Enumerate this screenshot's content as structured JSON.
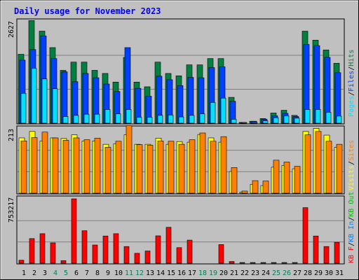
{
  "colors": {
    "background": "#c0c0c0",
    "plot": "#c0c0c0",
    "title": "#0000ff",
    "hits": "#008040",
    "files": "#0040ff",
    "pages": "#00e0ff",
    "visits": "#ff8000",
    "sites": "#ffff00",
    "kbytes_in": "#0080ff",
    "kbytes_out": "#00c000",
    "kbytes_f": "#ff0000",
    "grid": "#808080",
    "weekend_label": "#00805c",
    "weekday_label": "#000000"
  },
  "chart_data": {
    "type": "bar",
    "title": "Daily usage for November 2023",
    "categories": [
      "1",
      "2",
      "3",
      "4",
      "5",
      "6",
      "7",
      "8",
      "9",
      "10",
      "11",
      "12",
      "13",
      "14",
      "15",
      "16",
      "17",
      "18",
      "19",
      "20",
      "21",
      "22",
      "23",
      "24",
      "25",
      "26",
      "27",
      "28",
      "29",
      "30",
      "31"
    ],
    "weekend_days": [
      "4",
      "5",
      "11",
      "12",
      "18",
      "19",
      "25",
      "26"
    ],
    "panels": [
      {
        "id": "hits_files_pages",
        "ymax": 2627,
        "ymax_label": "2627",
        "legend": [
          "Pages",
          "/",
          "Files",
          "/",
          "Hits"
        ],
        "series": [
          {
            "name": "Hits",
            "values": [
              1760,
              2620,
              2350,
              1930,
              1350,
              1560,
              1560,
              1350,
              1270,
              1050,
              1680,
              1050,
              930,
              1560,
              1270,
              1210,
              1490,
              1490,
              1650,
              1650,
              660,
              20,
              50,
              120,
              260,
              330,
              200,
              2350,
              2120,
              1870,
              1530
            ]
          },
          {
            "name": "Files",
            "values": [
              1610,
              1880,
              2230,
              1650,
              1310,
              1060,
              1270,
              1160,
              1000,
              810,
              1930,
              890,
              690,
              1200,
              1110,
              960,
              1170,
              1160,
              1420,
              1440,
              560,
              20,
              50,
              100,
              190,
              250,
              170,
              2010,
              1980,
              1680,
              1290
            ]
          },
          {
            "name": "Pages",
            "values": [
              760,
              1400,
              1130,
              880,
              170,
              200,
              230,
              230,
              350,
              240,
              350,
              150,
              150,
              200,
              210,
              160,
              200,
              240,
              530,
              640,
              100,
              10,
              20,
              60,
              140,
              190,
              130,
              350,
              350,
              280,
              180
            ]
          }
        ]
      },
      {
        "id": "visits_sites",
        "ymax": 213,
        "ymax_label": "213",
        "legend": [
          "Visits",
          "/",
          "Sites"
        ],
        "series": [
          {
            "name": "Visits",
            "values": [
              181,
              202,
              171,
              181,
              179,
              191,
              171,
              171,
              160,
              162,
              191,
              160,
              160,
              180,
              160,
              169,
              167,
              192,
              181,
              167,
              71,
              4,
              29,
              25,
              85,
              91,
              80,
              202,
              212,
              190,
              150
            ]
          },
          {
            "name": "Sites",
            "values": [
              171,
              182,
              200,
              181,
              173,
              181,
              175,
              180,
              150,
              170,
              221,
              159,
              157,
              171,
              170,
              160,
              175,
              197,
              170,
              185,
              84,
              7,
              41,
              40,
              108,
              102,
              88,
              191,
              202,
              170,
              160
            ]
          }
        ]
      },
      {
        "id": "kbytes",
        "ymax": 753217,
        "ymax_label": "753217",
        "legend": [
          "KB F",
          "/",
          "KB In",
          "/",
          "KB Out"
        ],
        "series": [
          {
            "name": "KBytes F",
            "values": [
              35000,
              288000,
              345000,
              238000,
              30000,
              753000,
              380000,
              213000,
              318000,
              345000,
              195000,
              116000,
              143000,
              320000,
              420000,
              182000,
              270000,
              0,
              0,
              218000,
              20000,
              3000,
              3000,
              3000,
              3000,
              3000,
              3000,
              650000,
              318000,
              195000,
              245000
            ]
          }
        ]
      }
    ]
  }
}
